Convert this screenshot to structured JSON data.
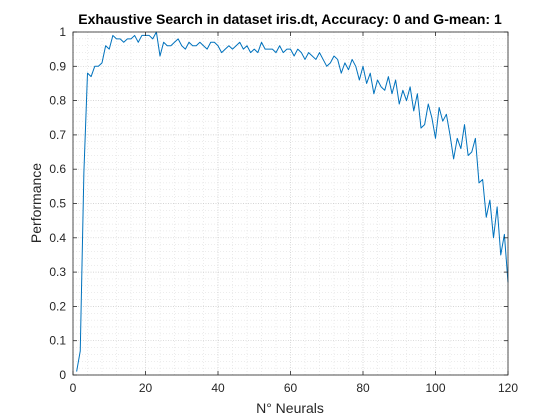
{
  "chart_data": {
    "type": "line",
    "title": "Exhaustive Search in dataset iris.dt, Accuracy: 0 and G-mean: 1",
    "xlabel": "N° Neurals",
    "ylabel": "Performance",
    "xlim": [
      0,
      120
    ],
    "ylim": [
      0,
      1
    ],
    "xticks": [
      "0",
      "20",
      "40",
      "60",
      "80",
      "100",
      "120"
    ],
    "yticks": [
      "0",
      "0.1",
      "0.2",
      "0.3",
      "0.4",
      "0.5",
      "0.6",
      "0.7",
      "0.8",
      "0.9",
      "1"
    ],
    "grid": true,
    "minor_grid": true,
    "colors": {
      "line": "#0072bd",
      "grid": "#d9d9d9",
      "axis": "#262626"
    },
    "series": [
      {
        "x": [
          1,
          2,
          3,
          4,
          5,
          6,
          7,
          8,
          9,
          10,
          11,
          12,
          13,
          14,
          15,
          16,
          17,
          18,
          19,
          20,
          21,
          22,
          23,
          24,
          25,
          26,
          27,
          28,
          29,
          30,
          31,
          32,
          33,
          34,
          35,
          36,
          37,
          38,
          39,
          40,
          41,
          42,
          43,
          44,
          45,
          46,
          47,
          48,
          49,
          50,
          51,
          52,
          53,
          54,
          55,
          56,
          57,
          58,
          59,
          60,
          61,
          62,
          63,
          64,
          65,
          66,
          67,
          68,
          69,
          70,
          71,
          72,
          73,
          74,
          75,
          76,
          77,
          78,
          79,
          80,
          81,
          82,
          83,
          84,
          85,
          86,
          87,
          88,
          89,
          90,
          91,
          92,
          93,
          94,
          95,
          96,
          97,
          98,
          99,
          100,
          101,
          102,
          103,
          104,
          105,
          106,
          107,
          108,
          109,
          110,
          111,
          112,
          113,
          114,
          115,
          116,
          117,
          118,
          119,
          120
        ],
        "y": [
          0.01,
          0.07,
          0.59,
          0.88,
          0.87,
          0.9,
          0.9,
          0.91,
          0.96,
          0.95,
          0.99,
          0.98,
          0.98,
          0.97,
          0.98,
          0.98,
          0.99,
          0.97,
          0.99,
          0.99,
          0.99,
          0.98,
          1.0,
          0.93,
          0.97,
          0.96,
          0.96,
          0.97,
          0.98,
          0.96,
          0.95,
          0.97,
          0.96,
          0.96,
          0.97,
          0.96,
          0.95,
          0.97,
          0.97,
          0.96,
          0.94,
          0.95,
          0.96,
          0.95,
          0.96,
          0.97,
          0.95,
          0.96,
          0.94,
          0.95,
          0.94,
          0.97,
          0.95,
          0.95,
          0.95,
          0.94,
          0.96,
          0.94,
          0.95,
          0.95,
          0.93,
          0.95,
          0.94,
          0.92,
          0.94,
          0.93,
          0.92,
          0.94,
          0.92,
          0.9,
          0.91,
          0.93,
          0.92,
          0.88,
          0.91,
          0.89,
          0.92,
          0.9,
          0.86,
          0.9,
          0.85,
          0.88,
          0.82,
          0.86,
          0.84,
          0.83,
          0.87,
          0.82,
          0.86,
          0.79,
          0.83,
          0.8,
          0.84,
          0.77,
          0.82,
          0.72,
          0.73,
          0.79,
          0.75,
          0.69,
          0.78,
          0.74,
          0.76,
          0.7,
          0.63,
          0.69,
          0.66,
          0.73,
          0.64,
          0.65,
          0.69,
          0.56,
          0.57,
          0.46,
          0.51,
          0.4,
          0.49,
          0.35,
          0.41,
          0.27
        ]
      }
    ]
  }
}
